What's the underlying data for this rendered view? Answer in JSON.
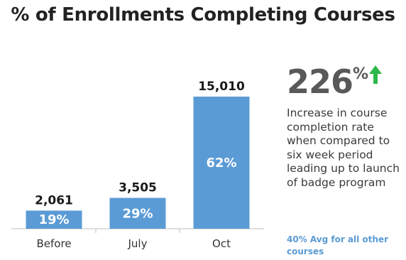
{
  "title": "% of Enrollments Completing Courses",
  "chart_data": {
    "type": "bar",
    "title": "% of Enrollments Completing Courses",
    "categories": [
      "Before",
      "July",
      "Oct"
    ],
    "values": [
      2061,
      3505,
      15010
    ],
    "value_labels": [
      "2,061",
      "3,505",
      "15,010"
    ],
    "percent_labels": [
      "19%",
      "29%",
      "62%"
    ],
    "ylim": [
      0,
      15010
    ],
    "grid": false,
    "bar_color": "#5b9bd5"
  },
  "stat": {
    "number": "226",
    "suffix": "%",
    "description": "Increase in course completion rate when compared to six week period leading up to launch of badge program",
    "note": "40% Avg for all other courses",
    "arrow_color": "#2db84b"
  }
}
